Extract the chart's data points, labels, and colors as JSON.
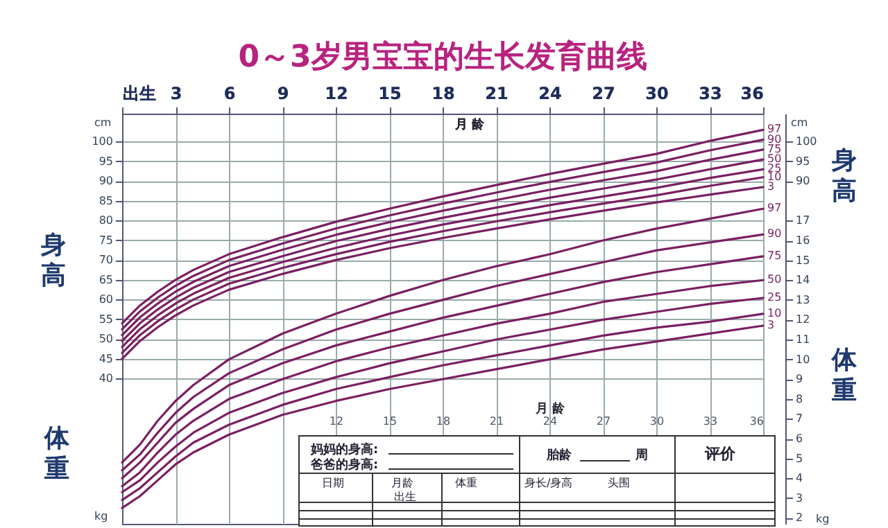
{
  "chart_data": {
    "type": "line",
    "title": "0～3岁男宝宝的生长发育曲线",
    "x2label": "月 龄",
    "xlabel": "月 龄",
    "ylabel": "身高",
    "y2label": "体重",
    "y3label": "身高",
    "x": [
      0,
      1,
      2,
      3,
      4,
      6,
      9,
      12,
      15,
      18,
      21,
      24,
      27,
      30,
      33,
      36
    ],
    "x2lim": [
      0,
      36
    ],
    "x2ticks": [
      {
        "value": 0,
        "label": "出生"
      },
      3,
      6,
      9,
      12,
      15,
      18,
      21,
      24,
      27,
      30,
      33,
      36
    ],
    "xlim": [
      0,
      36
    ],
    "xticks": [
      12,
      15,
      18,
      21,
      24,
      27,
      30,
      33,
      36
    ],
    "ylim": [
      3.2,
      107.1
    ],
    "yticks": [
      40,
      45,
      50,
      55,
      60,
      65,
      70,
      75,
      80,
      85,
      90,
      95,
      100
    ],
    "y3lim": [
      3.2,
      107.1
    ],
    "y3ticks": [
      90,
      95,
      100
    ],
    "y2lim": [
      1.7,
      22.4
    ],
    "y2ticks": [
      2,
      3,
      4,
      5,
      6,
      7,
      8,
      9,
      10,
      11,
      12,
      13,
      14,
      15,
      16,
      17
    ],
    "grid": true,
    "series": [
      {
        "name": "3",
        "color": "#7a1f62",
        "values": [
          45,
          49.5,
          53,
          56,
          58.5,
          62.5,
          66.5,
          70,
          73,
          75.6,
          78,
          80.3,
          82.5,
          84.6,
          86.6,
          88.5
        ]
      },
      {
        "name": "10",
        "color": "#7a1f62",
        "values": [
          46.5,
          51,
          54.5,
          57.5,
          60,
          64,
          68,
          71.5,
          74.6,
          77.3,
          79.8,
          82.1,
          84.3,
          86.4,
          88.8,
          91
        ]
      },
      {
        "name": "25",
        "color": "#7a1f62",
        "values": [
          48,
          52.5,
          56,
          59,
          61.5,
          65.5,
          69.5,
          73.1,
          76.2,
          79,
          81.5,
          83.9,
          86.1,
          88.3,
          90.8,
          93
        ]
      },
      {
        "name": "50",
        "color": "#7a1f62",
        "values": [
          49.5,
          54,
          57.5,
          60.5,
          63,
          67,
          71,
          74.8,
          77.9,
          80.7,
          83.3,
          85.8,
          88.1,
          90.4,
          93,
          95.5
        ]
      },
      {
        "name": "75",
        "color": "#7a1f62",
        "values": [
          51,
          55.5,
          59,
          62,
          64.5,
          68.5,
          72.6,
          76.4,
          79.6,
          82.5,
          85.2,
          87.8,
          90.2,
          92.5,
          95.4,
          98
        ]
      },
      {
        "name": "90",
        "color": "#7a1f62",
        "values": [
          52.5,
          57,
          60.5,
          63.5,
          66,
          70,
          74.2,
          78,
          81.3,
          84.3,
          87.1,
          89.8,
          92.3,
          94.7,
          97.8,
          100.5
        ]
      },
      {
        "name": "97",
        "color": "#7a1f62",
        "values": [
          54,
          58.5,
          62,
          65,
          67.5,
          71.5,
          75.8,
          79.7,
          83,
          86.1,
          89,
          91.8,
          94.4,
          96.9,
          100.2,
          103
        ]
      },
      {
        "name": "3",
        "color": "#7a1f62",
        "axis": "y2",
        "values": [
          2.5,
          3.1,
          3.9,
          4.7,
          5.3,
          6.2,
          7.2,
          7.9,
          8.5,
          9,
          9.5,
          10,
          10.5,
          10.9,
          11.3,
          11.7
        ]
      },
      {
        "name": "10",
        "color": "#7a1f62",
        "axis": "y2",
        "values": [
          2.9,
          3.5,
          4.3,
          5.1,
          5.8,
          6.7,
          7.7,
          8.5,
          9.1,
          9.7,
          10.2,
          10.7,
          11.2,
          11.6,
          11.9,
          12.3
        ]
      },
      {
        "name": "25",
        "color": "#7a1f62",
        "axis": "y2",
        "values": [
          3.3,
          3.9,
          4.8,
          5.6,
          6.3,
          7.3,
          8.3,
          9.1,
          9.8,
          10.4,
          11,
          11.5,
          12,
          12.4,
          12.8,
          13.1
        ]
      },
      {
        "name": "50",
        "color": "#7a1f62",
        "axis": "y2",
        "values": [
          3.6,
          4.3,
          5.3,
          6.2,
          6.9,
          8,
          9,
          9.9,
          10.6,
          11.2,
          11.8,
          12.3,
          12.9,
          13.3,
          13.7,
          14
        ]
      },
      {
        "name": "75",
        "color": "#7a1f62",
        "axis": "y2",
        "values": [
          4,
          4.8,
          5.8,
          6.8,
          7.5,
          8.7,
          9.8,
          10.7,
          11.4,
          12.1,
          12.7,
          13.3,
          13.9,
          14.4,
          14.8,
          15.2
        ]
      },
      {
        "name": "90",
        "color": "#7a1f62",
        "axis": "y2",
        "values": [
          4.4,
          5.2,
          6.3,
          7.3,
          8.1,
          9.3,
          10.5,
          11.5,
          12.3,
          13,
          13.7,
          14.3,
          14.9,
          15.5,
          15.9,
          16.3
        ]
      },
      {
        "name": "97",
        "color": "#7a1f62",
        "axis": "y2",
        "values": [
          4.8,
          5.7,
          6.9,
          7.9,
          8.7,
          10,
          11.3,
          12.3,
          13.2,
          14,
          14.7,
          15.3,
          16,
          16.6,
          17.1,
          17.6
        ]
      }
    ],
    "annotations": [
      "cm",
      "kg",
      "cm",
      "kg",
      "体重",
      "妈妈的身高:",
      "爸爸的身高:",
      "胎龄",
      "周",
      "评价",
      "日期",
      "月龄",
      "出生",
      "体重",
      "身长/身高",
      "头围"
    ]
  }
}
